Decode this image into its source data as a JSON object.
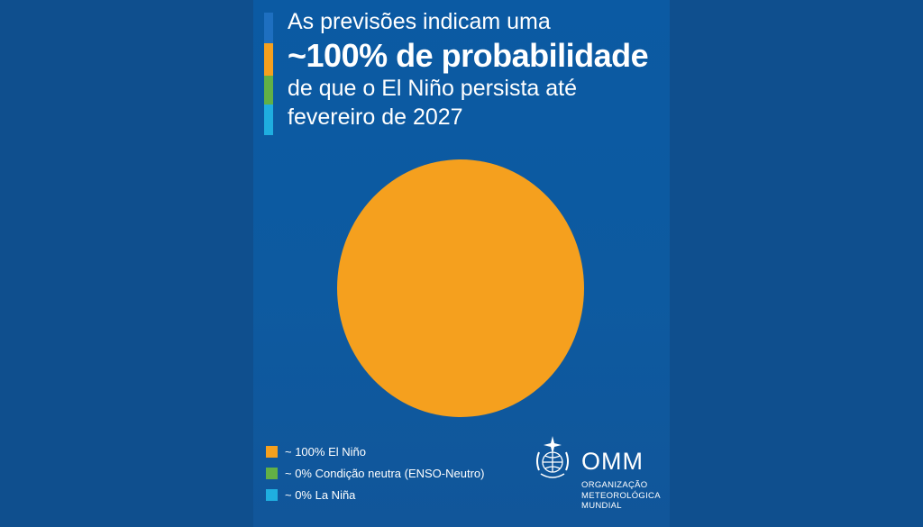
{
  "headline": {
    "line1": "As previsões indicam uma",
    "line2": "~100% de probabilidade",
    "line3": "de que o El Niño persista até",
    "line4": "fevereiro de 2027"
  },
  "colors": {
    "el_nino": "#f5a01e",
    "neutral": "#62b046",
    "la_nina": "#1faee0",
    "accent_blue": "#1e6fc0",
    "background": "#0b5aa3"
  },
  "chart_data": {
    "type": "pie",
    "categories": [
      "El Niño",
      "Condição neutra (ENSO-Neutro)",
      "La Niña"
    ],
    "values": [
      100,
      0,
      0
    ],
    "colors": [
      "#f5a01e",
      "#62b046",
      "#1faee0"
    ],
    "legend_position": "bottom-left",
    "legend": [
      {
        "label": "~ 100% El Niño",
        "color": "#f5a01e"
      },
      {
        "label": "~ 0% Condição neutra (ENSO-Neutro)",
        "color": "#62b046"
      },
      {
        "label": "~ 0% La Niña",
        "color": "#1faee0"
      }
    ]
  },
  "logo": {
    "abbr": "OMM",
    "name_lines": [
      "ORGANIZAÇÃO",
      "METEOROLÓGICA",
      "MUNDIAL"
    ],
    "emblem_icon": "wmo-emblem-icon"
  }
}
